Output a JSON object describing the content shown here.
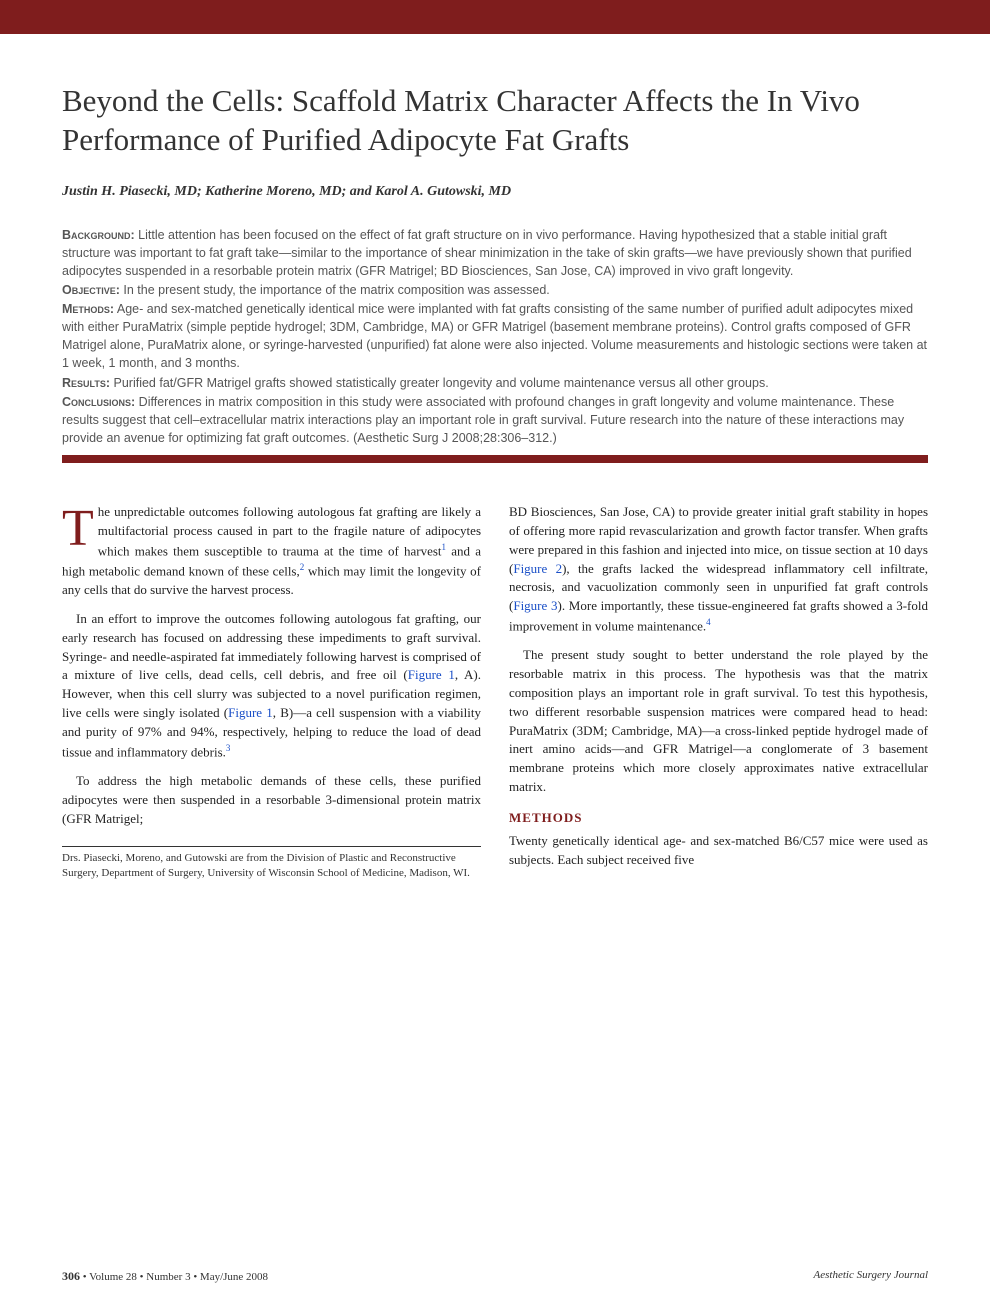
{
  "colors": {
    "brand_red": "#7f1d1d",
    "link_blue": "#1a4fc7",
    "body_text": "#222222",
    "abstract_text": "#555555",
    "background": "#ffffff"
  },
  "typography": {
    "title_fontsize": 31,
    "authors_fontsize": 14,
    "abstract_fontsize": 12.5,
    "body_fontsize": 13,
    "dropcap_fontsize": 52,
    "footer_fontsize": 11
  },
  "title": "Beyond the Cells: Scaffold Matrix Character Affects the In Vivo Performance of Purified Adipocyte Fat Grafts",
  "authors": "Justin H. Piasecki, MD; Katherine Moreno, MD; and Karol A. Gutowski, MD",
  "abstract": {
    "background_label": "Background:",
    "background": " Little attention has been focused on the effect of fat graft structure on in vivo performance. Having hypothesized that a stable initial graft structure was important to fat graft take—similar to the importance of shear minimization in the take of skin grafts—we have previously shown that purified adipocytes suspended in a resorbable protein matrix (GFR Matrigel; BD Biosciences, San Jose, CA) improved in vivo graft longevity.",
    "objective_label": "Objective:",
    "objective": " In the present study, the importance of the matrix composition was assessed.",
    "methods_label": "Methods:",
    "methods": " Age- and sex-matched genetically identical mice were implanted with fat grafts consisting of the same number of purified adult adipocytes mixed with either PuraMatrix (simple peptide hydrogel; 3DM, Cambridge, MA) or GFR Matrigel (basement membrane proteins). Control grafts composed of GFR Matrigel alone, PuraMatrix alone, or syringe-harvested (unpurified) fat alone were also injected. Volume measurements and histologic sections were taken at 1 week, 1 month, and 3 months.",
    "results_label": "Results:",
    "results": " Purified fat/GFR Matrigel grafts showed statistically greater longevity and volume maintenance versus all other groups.",
    "conclusions_label": "Conclusions:",
    "conclusions": " Differences in matrix composition in this study were associated with profound changes in graft longevity and volume maintenance. These results suggest that cell–extracellular matrix interactions play an important role in graft survival. Future research into the nature of these interactions may provide an avenue for optimizing fat graft outcomes. (Aesthetic Surg J 2008;28:306–312.)"
  },
  "body": {
    "col1": {
      "p1_dropcap": "T",
      "p1": "he unpredictable outcomes following autologous fat grafting are likely a multifactorial process caused in part to the fragile nature of adipocytes which makes them susceptible to trauma at the time of harvest",
      "p1_sup1": "1",
      "p1_cont": " and a high metabolic demand known of these cells,",
      "p1_sup2": "2",
      "p1_end": " which may limit the longevity of any cells that do survive the harvest process.",
      "p2_a": "In an effort to improve the outcomes following autologous fat grafting, our early research has focused on addressing these impediments to graft survival. Syringe- and needle-aspirated fat immediately following harvest is comprised of a mixture of live cells, dead cells, cell debris, and free oil (",
      "p2_fig1": "Figure 1",
      "p2_b": ", A). However, when this cell slurry was subjected to a novel purification regimen, live cells were singly isolated (",
      "p2_fig2": "Figure 1",
      "p2_c": ", B)—a cell suspension with a viability and purity of 97% and 94%, respectively, helping to reduce the load of dead tissue and inflammatory debris.",
      "p2_sup3": "3",
      "p3": "To address the high metabolic demands of these cells, these purified adipocytes were then suspended in a resorbable 3-dimensional protein matrix (GFR Matrigel;"
    },
    "col2": {
      "p1_a": "BD Biosciences, San Jose, CA) to provide greater initial graft stability in hopes of offering more rapid revascularization and growth factor transfer. When grafts were prepared in this fashion and injected into mice, on tissue section at 10 days (",
      "p1_fig": "Figure 2",
      "p1_b": "), the grafts lacked the widespread inflammatory cell infiltrate, necrosis, and vacuolization commonly seen in unpurified fat graft controls (",
      "p1_fig2": "Figure 3",
      "p1_c": "). More importantly, these tissue-engineered fat grafts showed a 3-fold improvement in volume maintenance.",
      "p1_sup4": "4",
      "p2": "The present study sought to better understand the role played by the resorbable matrix in this process. The hypothesis was that the matrix composition plays an important role in graft survival. To test this hypothesis, two different resorbable suspension matrices were compared head to head: PuraMatrix (3DM; Cambridge, MA)—a cross-linked peptide hydrogel made of inert amino acids—and GFR Matrigel—a conglomerate of 3 basement membrane proteins which more closely approximates native extracellular matrix.",
      "methods_heading": "METHODS",
      "p3": "Twenty genetically identical age- and sex-matched B6/C57 mice were used as subjects. Each subject received five"
    },
    "affiliation": "Drs. Piasecki, Moreno, and Gutowski are from the Division of Plastic and Reconstructive Surgery, Department of Surgery, University of Wisconsin School of Medicine, Madison, WI."
  },
  "footer": {
    "page_number": "306",
    "issue": " • Volume 28 • Number 3 • May/June 2008",
    "journal": "Aesthetic Surgery Journal"
  }
}
